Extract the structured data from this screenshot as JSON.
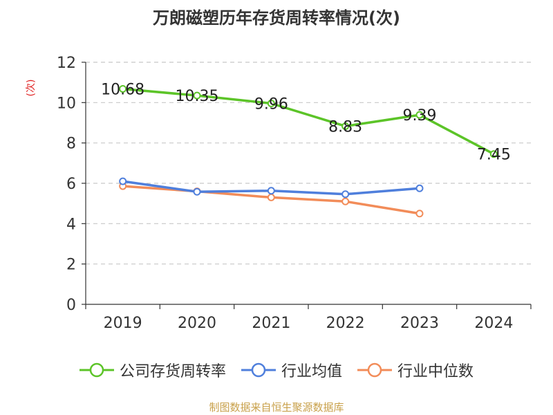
{
  "title": "万朗磁塑历年存货周转率情况(次)",
  "source": "制图数据来自恒生聚源数据库",
  "colors": {
    "company": "#5cc428",
    "industry_avg": "#4f7fdc",
    "industry_median": "#f28c59",
    "axis": "#333333",
    "grid": "#c8c8c8",
    "ylabel": "#e02020"
  },
  "chart_data": {
    "type": "line",
    "title": "万朗磁塑历年存货周转率情况(次)",
    "ylabel": "(次)",
    "xlabel": "",
    "categories": [
      "2019",
      "2020",
      "2021",
      "2022",
      "2023",
      "2024"
    ],
    "ylim": [
      0,
      12
    ],
    "yticks": [
      0,
      2,
      4,
      6,
      8,
      10,
      12
    ],
    "grid": "horizontal dashed",
    "legend_position": "bottom",
    "series": [
      {
        "name": "公司存货周转率",
        "color": "#5cc428",
        "values": [
          10.68,
          10.35,
          9.96,
          8.83,
          9.39,
          7.45
        ],
        "show_labels": true
      },
      {
        "name": "行业均值",
        "color": "#4f7fdc",
        "values": [
          6.1,
          5.58,
          5.63,
          5.46,
          5.75,
          null
        ],
        "show_labels": false
      },
      {
        "name": "行业中位数",
        "color": "#f28c59",
        "values": [
          5.86,
          5.6,
          5.3,
          5.1,
          4.5,
          null
        ],
        "show_labels": false
      }
    ]
  }
}
